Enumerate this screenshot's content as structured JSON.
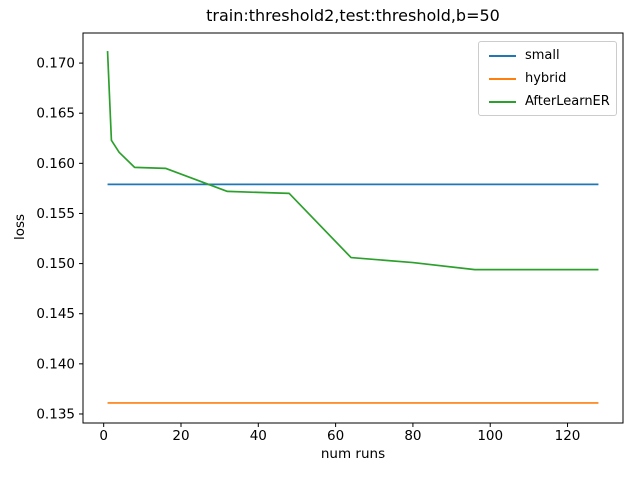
{
  "chart_data": {
    "type": "line",
    "title": "train:threshold2,test:threshold,b=50",
    "xlabel": "num runs",
    "ylabel": "loss",
    "grid": false,
    "legend_position": "upper right",
    "xlim": [
      -5.35,
      134.35
    ],
    "ylim": [
      0.1341,
      0.173
    ],
    "xticks": [
      0,
      20,
      40,
      60,
      80,
      100,
      120
    ],
    "yticks": [
      0.135,
      0.14,
      0.145,
      0.15,
      0.155,
      0.16,
      0.165,
      0.17
    ],
    "x": [
      1,
      2,
      4,
      8,
      16,
      32,
      48,
      64,
      80,
      96,
      112,
      128
    ],
    "series": [
      {
        "name": "small",
        "color": "#1f77b4",
        "values": [
          0.1579,
          0.1579,
          0.1579,
          0.1579,
          0.1579,
          0.1579,
          0.1579,
          0.1579,
          0.1579,
          0.1579,
          0.1579,
          0.1579
        ]
      },
      {
        "name": "hybrid",
        "color": "#ff7f0e",
        "values": [
          0.1361,
          0.1361,
          0.1361,
          0.1361,
          0.1361,
          0.1361,
          0.1361,
          0.1361,
          0.1361,
          0.1361,
          0.1361,
          0.1361
        ]
      },
      {
        "name": "AfterLearnER",
        "color": "#2ca02c",
        "values": [
          0.1712,
          0.1623,
          0.1611,
          0.1596,
          0.1595,
          0.1572,
          0.157,
          0.1506,
          0.1501,
          0.1494,
          0.1494,
          0.1494
        ]
      }
    ]
  }
}
